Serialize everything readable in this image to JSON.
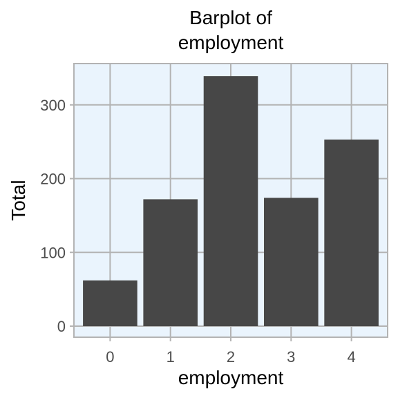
{
  "chart_data": {
    "type": "bar",
    "title_line1": "Barplot of",
    "title_line2": "employment",
    "xlabel": "employment",
    "ylabel": "Total",
    "categories": [
      "0",
      "1",
      "2",
      "3",
      "4"
    ],
    "values": [
      62,
      172,
      339,
      174,
      253
    ],
    "ylim": [
      -15,
      356
    ],
    "yticks": [
      0,
      100,
      200,
      300
    ],
    "ytick_labels": [
      "0",
      "100",
      "200",
      "300"
    ],
    "grid": true,
    "legend": "none"
  },
  "colors": {
    "panel_background": "#eaf4fd",
    "bar_fill": "#474747",
    "grid": "#b3b3b3",
    "panel_border": "#b3b3b3",
    "tick_text": "#4d4d4d"
  }
}
